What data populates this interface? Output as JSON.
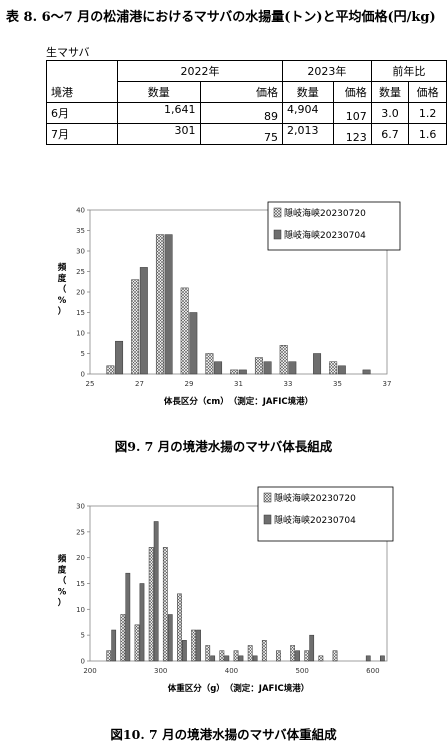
{
  "title": "表 8. 6〜7 月の松浦港におけるマサバの水揚量(トン)と平均価格(円/kg)",
  "table": {
    "subtitle": "生マサバ",
    "row_header": "境港",
    "groups": [
      "2022年",
      "2023年",
      "前年比"
    ],
    "subheaders": [
      "数量",
      "価格",
      "数量",
      "価格",
      "数量",
      "価格"
    ],
    "rows": [
      {
        "label": "6月",
        "cells": [
          "1,641",
          "89",
          "4,904",
          "107",
          "3.0",
          "1.2"
        ]
      },
      {
        "label": "7月",
        "cells": [
          "301",
          "75",
          "2,013",
          "123",
          "6.7",
          "1.6"
        ]
      }
    ]
  },
  "chart_data": [
    {
      "type": "bar",
      "ylabel": "頻度（%）",
      "xlabel": "体長区分（cm）　（測定：JAFIC境港）",
      "ylim": [
        0,
        40
      ],
      "yticks": [
        0,
        5,
        10,
        15,
        20,
        25,
        30,
        35,
        40
      ],
      "xlim": [
        25,
        37
      ],
      "xticks": [
        25,
        27,
        29,
        31,
        33,
        35,
        37
      ],
      "legend_position": "top-right",
      "x": [
        26,
        27,
        28,
        29,
        30,
        31,
        32,
        33,
        34,
        35,
        36
      ],
      "series": [
        {
          "name": "隠岐海峡20230720",
          "values": [
            2,
            23,
            34,
            21,
            5,
            1,
            4,
            7,
            0,
            3,
            0
          ]
        },
        {
          "name": "隠岐海峡20230704",
          "values": [
            8,
            26,
            34,
            15,
            3,
            1,
            3,
            3,
            5,
            2,
            1
          ]
        }
      ]
    },
    {
      "type": "bar",
      "ylabel": "頻度（%）",
      "xlabel": "体重区分（g）　（測定：JAFIC境港）",
      "ylim": [
        0,
        30
      ],
      "yticks": [
        0,
        5,
        10,
        15,
        20,
        25,
        30
      ],
      "xlim": [
        200,
        620
      ],
      "xticks": [
        200,
        300,
        400,
        500,
        600
      ],
      "legend_position": "top-right",
      "x": [
        230,
        250,
        270,
        290,
        310,
        330,
        350,
        370,
        390,
        410,
        430,
        450,
        470,
        490,
        510,
        530,
        550,
        570,
        590,
        610
      ],
      "series": [
        {
          "name": "隠岐海峡20230720",
          "values": [
            2,
            9,
            7,
            22,
            22,
            13,
            6,
            3,
            2,
            2,
            3,
            4,
            2,
            3,
            2,
            1,
            2,
            0,
            0,
            0
          ]
        },
        {
          "name": "隠岐海峡20230704",
          "values": [
            6,
            17,
            15,
            27,
            9,
            4,
            6,
            1,
            1,
            1,
            1,
            0,
            0,
            2,
            5,
            0,
            0,
            0,
            1,
            1
          ]
        }
      ]
    }
  ],
  "captions": {
    "fig9": "図9.  7 月の境港水揚のマサバ体長組成",
    "fig10": "図10. 7 月の境港水揚のマサバ体重組成"
  }
}
